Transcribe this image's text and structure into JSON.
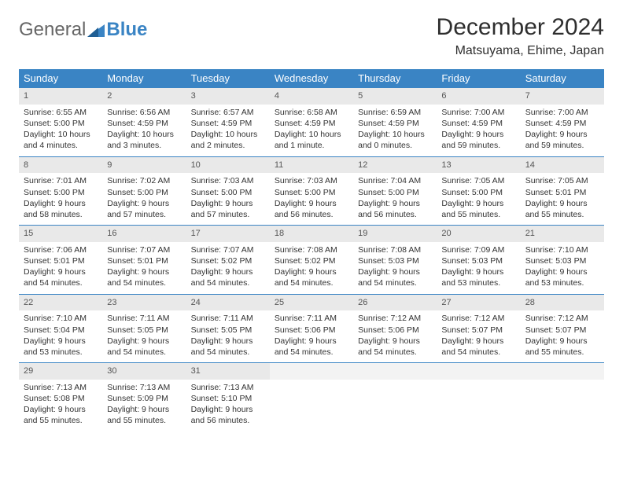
{
  "logo": {
    "text1": "General",
    "text2": "Blue"
  },
  "title": "December 2024",
  "location": "Matsuyama, Ehime, Japan",
  "colors": {
    "header_bg": "#3a84c4",
    "header_fg": "#ffffff",
    "daynum_bg": "#e9e9e9",
    "rule": "#3a84c4",
    "text": "#333333",
    "page_bg": "#ffffff"
  },
  "typography": {
    "title_fontsize": 30,
    "location_fontsize": 16,
    "dow_fontsize": 13,
    "cell_fontsize": 10.5
  },
  "days_of_week": [
    "Sunday",
    "Monday",
    "Tuesday",
    "Wednesday",
    "Thursday",
    "Friday",
    "Saturday"
  ],
  "weeks": [
    [
      {
        "n": "1",
        "sunrise": "6:55 AM",
        "sunset": "5:00 PM",
        "daylight": "10 hours and 4 minutes."
      },
      {
        "n": "2",
        "sunrise": "6:56 AM",
        "sunset": "4:59 PM",
        "daylight": "10 hours and 3 minutes."
      },
      {
        "n": "3",
        "sunrise": "6:57 AM",
        "sunset": "4:59 PM",
        "daylight": "10 hours and 2 minutes."
      },
      {
        "n": "4",
        "sunrise": "6:58 AM",
        "sunset": "4:59 PM",
        "daylight": "10 hours and 1 minute."
      },
      {
        "n": "5",
        "sunrise": "6:59 AM",
        "sunset": "4:59 PM",
        "daylight": "10 hours and 0 minutes."
      },
      {
        "n": "6",
        "sunrise": "7:00 AM",
        "sunset": "4:59 PM",
        "daylight": "9 hours and 59 minutes."
      },
      {
        "n": "7",
        "sunrise": "7:00 AM",
        "sunset": "4:59 PM",
        "daylight": "9 hours and 59 minutes."
      }
    ],
    [
      {
        "n": "8",
        "sunrise": "7:01 AM",
        "sunset": "5:00 PM",
        "daylight": "9 hours and 58 minutes."
      },
      {
        "n": "9",
        "sunrise": "7:02 AM",
        "sunset": "5:00 PM",
        "daylight": "9 hours and 57 minutes."
      },
      {
        "n": "10",
        "sunrise": "7:03 AM",
        "sunset": "5:00 PM",
        "daylight": "9 hours and 57 minutes."
      },
      {
        "n": "11",
        "sunrise": "7:03 AM",
        "sunset": "5:00 PM",
        "daylight": "9 hours and 56 minutes."
      },
      {
        "n": "12",
        "sunrise": "7:04 AM",
        "sunset": "5:00 PM",
        "daylight": "9 hours and 56 minutes."
      },
      {
        "n": "13",
        "sunrise": "7:05 AM",
        "sunset": "5:00 PM",
        "daylight": "9 hours and 55 minutes."
      },
      {
        "n": "14",
        "sunrise": "7:05 AM",
        "sunset": "5:01 PM",
        "daylight": "9 hours and 55 minutes."
      }
    ],
    [
      {
        "n": "15",
        "sunrise": "7:06 AM",
        "sunset": "5:01 PM",
        "daylight": "9 hours and 54 minutes."
      },
      {
        "n": "16",
        "sunrise": "7:07 AM",
        "sunset": "5:01 PM",
        "daylight": "9 hours and 54 minutes."
      },
      {
        "n": "17",
        "sunrise": "7:07 AM",
        "sunset": "5:02 PM",
        "daylight": "9 hours and 54 minutes."
      },
      {
        "n": "18",
        "sunrise": "7:08 AM",
        "sunset": "5:02 PM",
        "daylight": "9 hours and 54 minutes."
      },
      {
        "n": "19",
        "sunrise": "7:08 AM",
        "sunset": "5:03 PM",
        "daylight": "9 hours and 54 minutes."
      },
      {
        "n": "20",
        "sunrise": "7:09 AM",
        "sunset": "5:03 PM",
        "daylight": "9 hours and 53 minutes."
      },
      {
        "n": "21",
        "sunrise": "7:10 AM",
        "sunset": "5:03 PM",
        "daylight": "9 hours and 53 minutes."
      }
    ],
    [
      {
        "n": "22",
        "sunrise": "7:10 AM",
        "sunset": "5:04 PM",
        "daylight": "9 hours and 53 minutes."
      },
      {
        "n": "23",
        "sunrise": "7:11 AM",
        "sunset": "5:05 PM",
        "daylight": "9 hours and 54 minutes."
      },
      {
        "n": "24",
        "sunrise": "7:11 AM",
        "sunset": "5:05 PM",
        "daylight": "9 hours and 54 minutes."
      },
      {
        "n": "25",
        "sunrise": "7:11 AM",
        "sunset": "5:06 PM",
        "daylight": "9 hours and 54 minutes."
      },
      {
        "n": "26",
        "sunrise": "7:12 AM",
        "sunset": "5:06 PM",
        "daylight": "9 hours and 54 minutes."
      },
      {
        "n": "27",
        "sunrise": "7:12 AM",
        "sunset": "5:07 PM",
        "daylight": "9 hours and 54 minutes."
      },
      {
        "n": "28",
        "sunrise": "7:12 AM",
        "sunset": "5:07 PM",
        "daylight": "9 hours and 55 minutes."
      }
    ],
    [
      {
        "n": "29",
        "sunrise": "7:13 AM",
        "sunset": "5:08 PM",
        "daylight": "9 hours and 55 minutes."
      },
      {
        "n": "30",
        "sunrise": "7:13 AM",
        "sunset": "5:09 PM",
        "daylight": "9 hours and 55 minutes."
      },
      {
        "n": "31",
        "sunrise": "7:13 AM",
        "sunset": "5:10 PM",
        "daylight": "9 hours and 56 minutes."
      },
      {
        "empty": true
      },
      {
        "empty": true
      },
      {
        "empty": true
      },
      {
        "empty": true
      }
    ]
  ],
  "labels": {
    "sunrise": "Sunrise: ",
    "sunset": "Sunset: ",
    "daylight": "Daylight: "
  }
}
